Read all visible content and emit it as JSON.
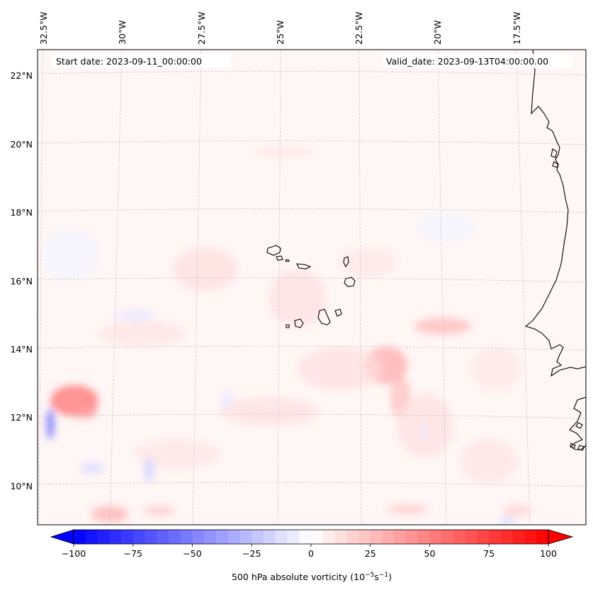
{
  "annotations": {
    "start_date": "Start date: 2023-09-11_00:00:00",
    "valid_date": "Valid_date: 2023-09-13T04:00:00.00"
  },
  "lon_labels": [
    "32.5°W",
    "30°W",
    "27.5°W",
    "25°W",
    "22.5°W",
    "20°W",
    "17.5°W"
  ],
  "lat_labels": [
    "22°N",
    "20°N",
    "18°N",
    "16°N",
    "14°N",
    "12°N",
    "10°N"
  ],
  "colorbar": {
    "ticks": [
      "−100",
      "−75",
      "−50",
      "−25",
      "0",
      "25",
      "50",
      "75",
      "100"
    ],
    "label_main": "500 hPa absolute vorticity (10",
    "label_exp1": "−5",
    "label_mid": "s",
    "label_exp2": "−1",
    "label_end": ")",
    "min_color": "#0000ff",
    "zero_color": "#ffffff",
    "max_color": "#ff0000"
  },
  "colors": {
    "background_field": "#fff6f6",
    "grid": "#bbbbbb",
    "coastline": "#000000"
  }
}
